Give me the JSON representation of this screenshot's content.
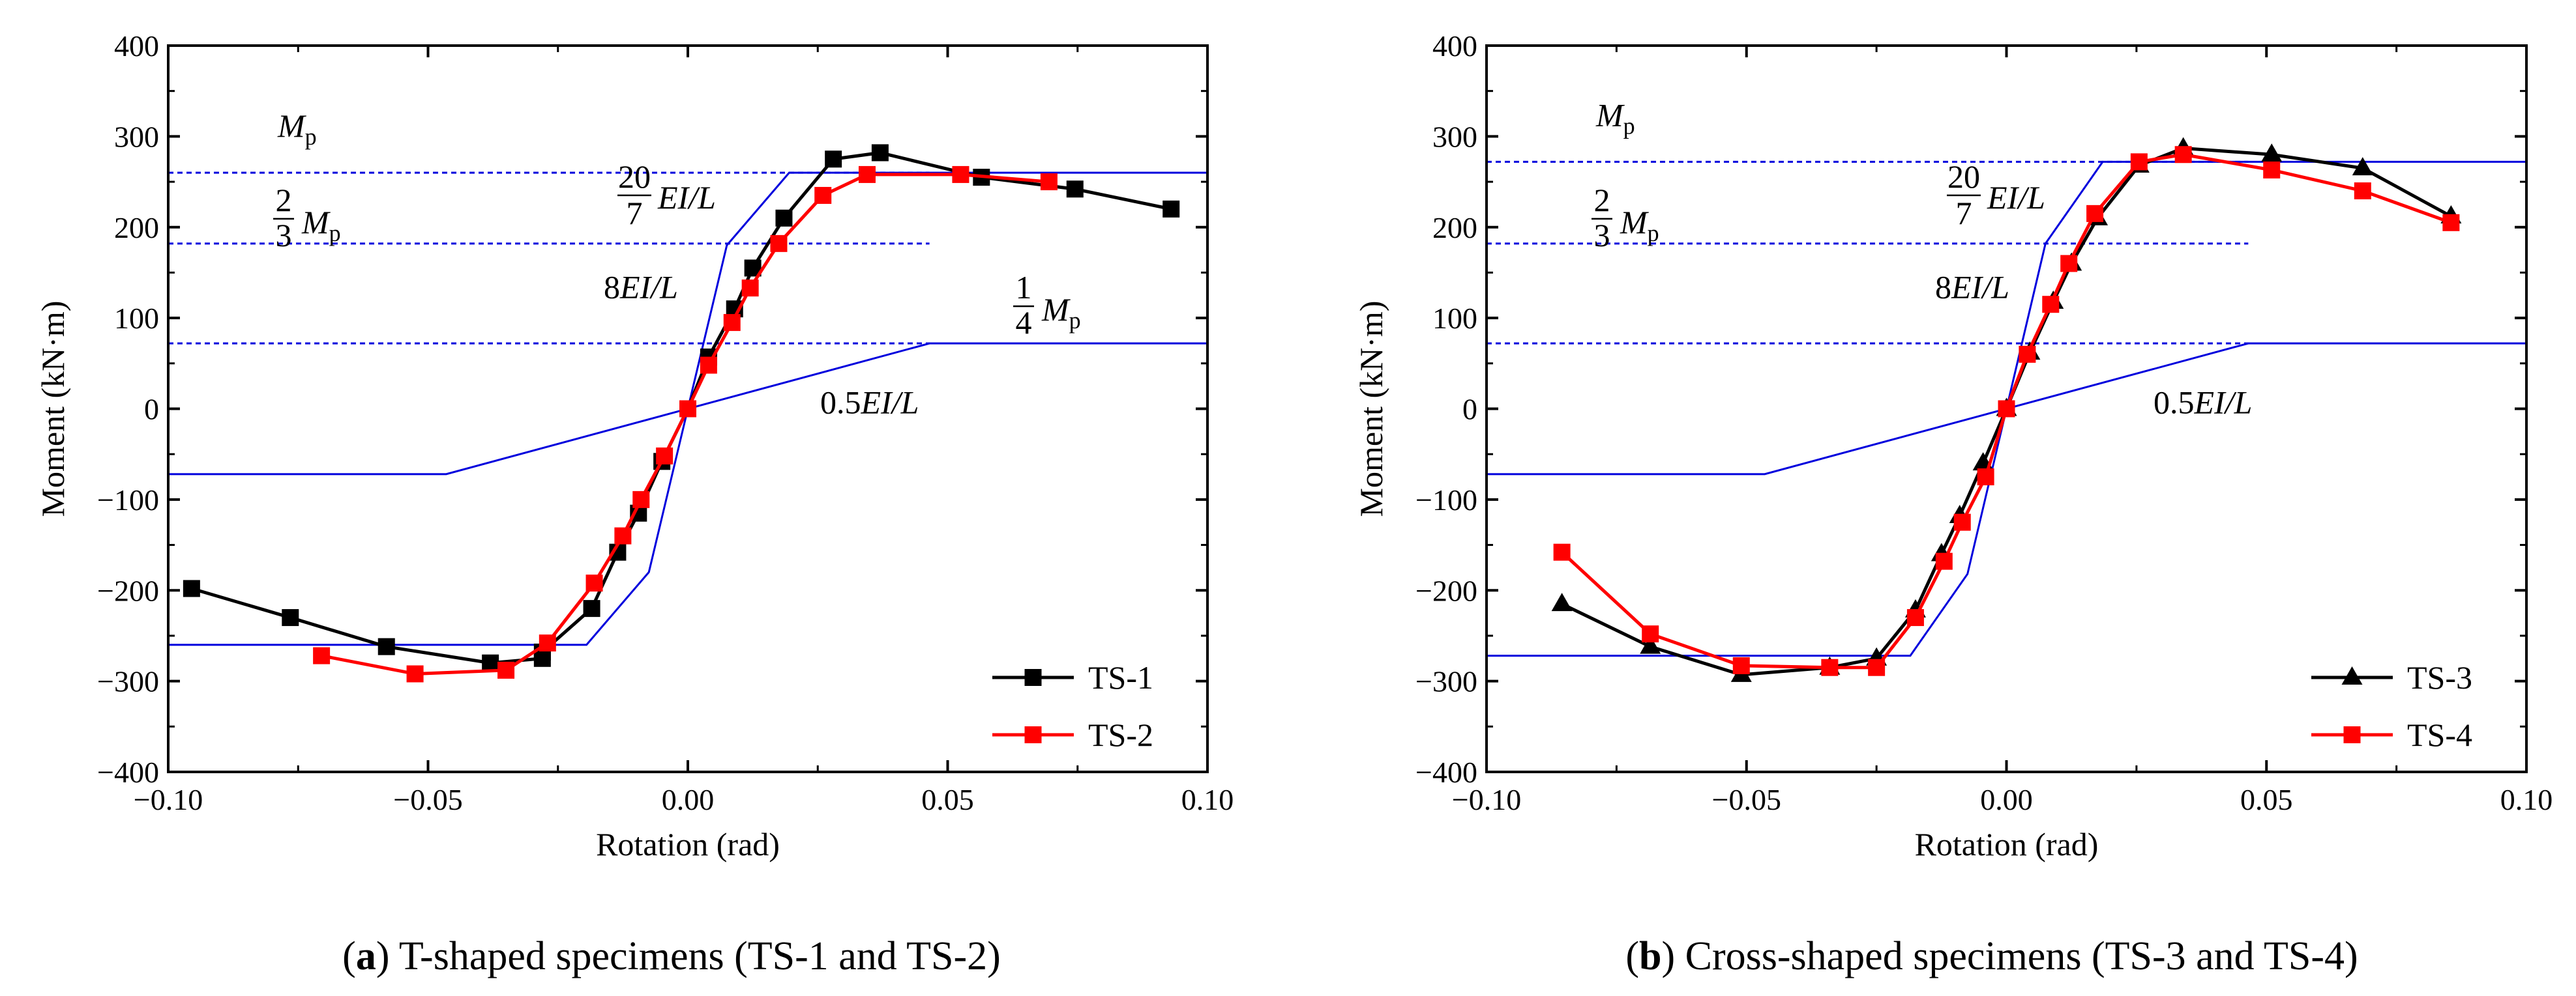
{
  "chart_data": [
    {
      "type": "line",
      "panel": "a",
      "caption_letter": "a",
      "caption_text": " T-shaped specimens (TS-1 and TS-2)",
      "caption_open": "(",
      "caption_close": ")",
      "xlabel": "Rotation (rad)",
      "ylabel": "Moment (kN·m)",
      "xlim": [
        -0.1,
        0.1
      ],
      "ylim": [
        -400,
        400
      ],
      "xticks": [
        -0.1,
        -0.05,
        0.0,
        0.05,
        0.1
      ],
      "xtick_labels": [
        "−0.10",
        "−0.05",
        "0.00",
        "0.05",
        "0.10"
      ],
      "yticks": [
        -400,
        -300,
        -200,
        -100,
        0,
        100,
        200,
        300,
        400
      ],
      "ytick_labels": [
        "−400",
        "−300",
        "−200",
        "−100",
        "0",
        "100",
        "200",
        "300",
        "400"
      ],
      "grid": false,
      "legend_position": "bottom-right",
      "series": [
        {
          "name": "TS-1",
          "color": "#000000",
          "marker": "square",
          "x": [
            -0.0955,
            -0.0765,
            -0.058,
            -0.038,
            -0.028,
            -0.028,
            -0.0185,
            -0.0135,
            -0.0095,
            -0.005,
            0.0,
            0.004,
            0.009,
            0.0125,
            0.0185,
            0.028,
            0.037,
            0.0565,
            0.0745,
            0.093
          ],
          "y": [
            -198,
            -230,
            -262,
            -280,
            -275,
            -268,
            -220,
            -158,
            -115,
            -58,
            0,
            57,
            110,
            155,
            210,
            275,
            282,
            255,
            242,
            220
          ]
        },
        {
          "name": "TS-2",
          "color": "#ff0000",
          "marker": "square",
          "x": [
            -0.0705,
            -0.0525,
            -0.035,
            -0.027,
            -0.018,
            -0.0125,
            -0.009,
            -0.0045,
            0.0,
            0.004,
            0.0085,
            0.012,
            0.0175,
            0.026,
            0.0345,
            0.0525,
            0.0695
          ],
          "y": [
            -272,
            -292,
            -288,
            -258,
            -192,
            -140,
            -100,
            -52,
            0,
            48,
            95,
            133,
            182,
            235,
            258,
            258,
            250
          ]
        }
      ],
      "reference_lines": {
        "color": "#0000dd",
        "solid_x": [
          -0.1,
          -0.0465,
          0.0465,
          0.1
        ],
        "solid_y": [
          -72,
          -72,
          72,
          72
        ],
        "solid_x2": [
          -0.1,
          -0.0195,
          -0.0075,
          0.0,
          0.0075,
          0.0195,
          0.1
        ],
        "solid_y2": [
          -260,
          -260,
          -180,
          0,
          180,
          260,
          260
        ],
        "dashed_levels": [
          260,
          182,
          72
        ],
        "dashed_x_end": 0.0465
      },
      "annotations": {
        "mp": "M",
        "mp_sub": "p",
        "two_thirds_num": "2",
        "two_thirds_den": "3",
        "twenty_sevenths_num": "20",
        "twenty_sevenths_den": "7",
        "ei_l": "EI/L",
        "eight": "8",
        "quarter_num": "1",
        "quarter_den": "4",
        "half": "0.5"
      }
    },
    {
      "type": "line",
      "panel": "b",
      "caption_letter": "b",
      "caption_text": " Cross-shaped specimens (TS-3 and TS-4)",
      "caption_open": "(",
      "caption_close": ")",
      "xlabel": "Rotation (rad)",
      "ylabel": "Moment (kN·m)",
      "xlim": [
        -0.1,
        0.1
      ],
      "ylim": [
        -400,
        400
      ],
      "xticks": [
        -0.1,
        -0.05,
        0.0,
        0.05,
        0.1
      ],
      "xtick_labels": [
        "−0.10",
        "−0.05",
        "0.00",
        "0.05",
        "0.10"
      ],
      "yticks": [
        -400,
        -300,
        -200,
        -100,
        0,
        100,
        200,
        300,
        400
      ],
      "ytick_labels": [
        "−400",
        "−300",
        "−200",
        "−100",
        "0",
        "100",
        "200",
        "300",
        "400"
      ],
      "grid": false,
      "legend_position": "bottom-right",
      "series": [
        {
          "name": "TS-3",
          "color": "#000000",
          "marker": "triangle",
          "x": [
            -0.0855,
            -0.0685,
            -0.051,
            -0.034,
            -0.025,
            -0.0175,
            -0.0125,
            -0.009,
            -0.0045,
            0.0,
            0.0045,
            0.009,
            0.0125,
            0.0175,
            0.0255,
            0.034,
            0.051,
            0.0685,
            0.0855
          ],
          "y": [
            -215,
            -262,
            -293,
            -285,
            -275,
            -222,
            -160,
            -118,
            -60,
            0,
            62,
            118,
            160,
            210,
            268,
            287,
            280,
            265,
            212
          ]
        },
        {
          "name": "TS-4",
          "color": "#ff0000",
          "marker": "square",
          "x": [
            -0.0855,
            -0.0685,
            -0.051,
            -0.034,
            -0.025,
            -0.0175,
            -0.012,
            -0.0085,
            -0.004,
            0.0,
            0.004,
            0.0085,
            0.012,
            0.017,
            0.0255,
            0.034,
            0.051,
            0.0685,
            0.0855
          ],
          "y": [
            -158,
            -248,
            -283,
            -285,
            -285,
            -230,
            -168,
            -125,
            -75,
            0,
            60,
            115,
            160,
            215,
            272,
            280,
            263,
            240,
            205
          ]
        }
      ],
      "reference_lines": {
        "color": "#0000dd",
        "solid_x": [
          -0.1,
          -0.0465,
          0.0465,
          0.1
        ],
        "solid_y": [
          -72,
          -72,
          72,
          72
        ],
        "solid_x2": [
          -0.1,
          -0.0185,
          -0.0075,
          0.0,
          0.0075,
          0.0185,
          0.1
        ],
        "solid_y2": [
          -272,
          -272,
          -182,
          0,
          182,
          272,
          272
        ],
        "dashed_levels": [
          272,
          182,
          72
        ],
        "dashed_x_end": 0.0465
      },
      "annotations": {
        "mp": "M",
        "mp_sub": "p",
        "two_thirds_num": "2",
        "two_thirds_den": "3",
        "twenty_sevenths_num": "20",
        "twenty_sevenths_den": "7",
        "ei_l": "EI/L",
        "eight": "8",
        "half": "0.5"
      }
    }
  ]
}
